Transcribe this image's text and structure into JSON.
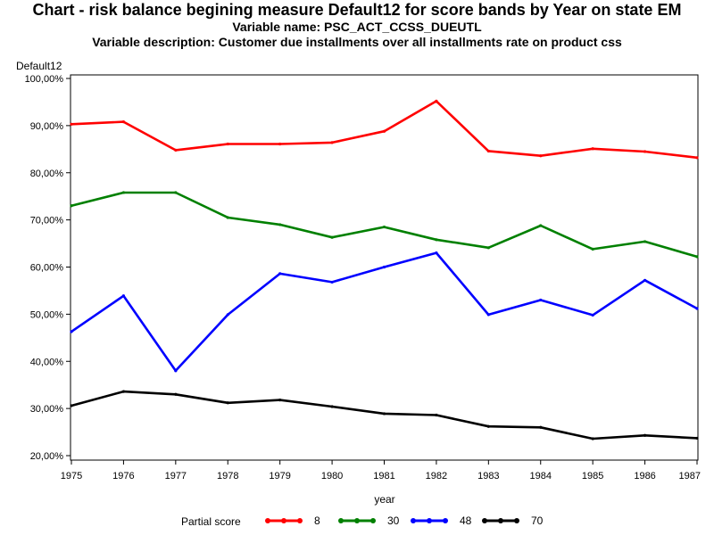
{
  "title": "Chart - risk balance begining measure Default12 for score bands by Year on state EM",
  "subtitle1": "Variable name: PSC_ACT_CCSS_DUEUTL",
  "subtitle2": "Variable description: Customer due installments over all installments rate on product css",
  "chart_data": {
    "type": "line",
    "title": "Chart - risk balance begining measure Default12 for score bands by Year on state EM",
    "xlabel": "year",
    "ylabel": "Default12",
    "x": [
      1975,
      1976,
      1977,
      1978,
      1979,
      1980,
      1981,
      1982,
      1983,
      1984,
      1985,
      1986,
      1987
    ],
    "x_tick_labels": [
      "1975",
      "1976",
      "1977",
      "1978",
      "1979",
      "1980",
      "1981",
      "1982",
      "1983",
      "1984",
      "1985",
      "1986",
      "1987"
    ],
    "ylim": [
      0.2,
      1.0
    ],
    "y_ticks": [
      0.2,
      0.3,
      0.4,
      0.5,
      0.6,
      0.7,
      0.8,
      0.9,
      1.0
    ],
    "y_tick_labels": [
      "20,00%",
      "30,00%",
      "40,00%",
      "50,00%",
      "60,00%",
      "70,00%",
      "80,00%",
      "90,00%",
      "100,00%"
    ],
    "grid": false,
    "legend": {
      "title": "Partial score",
      "position": "bottom"
    },
    "series": [
      {
        "name": "8",
        "color": "#ff0000",
        "values": [
          0.903,
          0.908,
          0.848,
          0.861,
          0.861,
          0.864,
          0.888,
          0.952,
          0.846,
          0.836,
          0.851,
          0.845,
          0.832
        ]
      },
      {
        "name": "30",
        "color": "#008000",
        "values": [
          0.73,
          0.758,
          0.758,
          0.705,
          0.69,
          0.663,
          0.685,
          0.658,
          0.641,
          0.688,
          0.638,
          0.654,
          0.622
        ]
      },
      {
        "name": "48",
        "color": "#0000ff",
        "values": [
          0.463,
          0.539,
          0.38,
          0.499,
          0.586,
          0.568,
          0.6,
          0.63,
          0.499,
          0.53,
          0.498,
          0.572,
          0.512
        ]
      },
      {
        "name": "70",
        "color": "#000000",
        "values": [
          0.306,
          0.336,
          0.33,
          0.312,
          0.318,
          0.304,
          0.289,
          0.286,
          0.262,
          0.26,
          0.236,
          0.243,
          0.237
        ]
      }
    ]
  }
}
